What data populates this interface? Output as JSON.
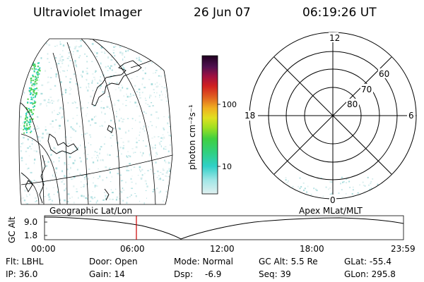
{
  "header": {
    "title": "Ultraviolet Imager",
    "date": "26 Jun 07",
    "time": "06:19:26 UT"
  },
  "map_panel": {
    "label": "Geographic Lat/Lon"
  },
  "colorbar": {
    "unit_label": "photon cm⁻²s⁻¹",
    "ticks": [
      "100",
      "10"
    ]
  },
  "polar_panel": {
    "label": "Apex  MLat/MLT",
    "mlt_labels": {
      "top": "12",
      "left": "18",
      "right": "6",
      "bottom": "0"
    },
    "lat_labels": [
      "60",
      "70",
      "80"
    ]
  },
  "altitude_plot": {
    "ylabel": "GC Alt",
    "y_ticks": [
      "9.0",
      "1.8"
    ],
    "x_ticks": [
      "00:00",
      "06:00",
      "12:00",
      "18:00",
      "23:59"
    ],
    "current_time_marker": "06:19"
  },
  "status": {
    "col1": [
      "Flt: LBHL",
      "IP: 36.0"
    ],
    "col2": [
      "Door: Open",
      "Gain: 14"
    ],
    "col3_label1": "Mode: Normal",
    "col3_dsp_label": "Dsp:",
    "col3_dsp_value": "-6.9",
    "col4": [
      "GC Alt: 5.5 Re",
      "Seq: 39"
    ],
    "col5": [
      "GLat: -55.4",
      "GLon: 295.8"
    ]
  },
  "colors": {
    "background": "#ffffff",
    "foreground": "#000000",
    "time_marker": "#cc0000"
  }
}
